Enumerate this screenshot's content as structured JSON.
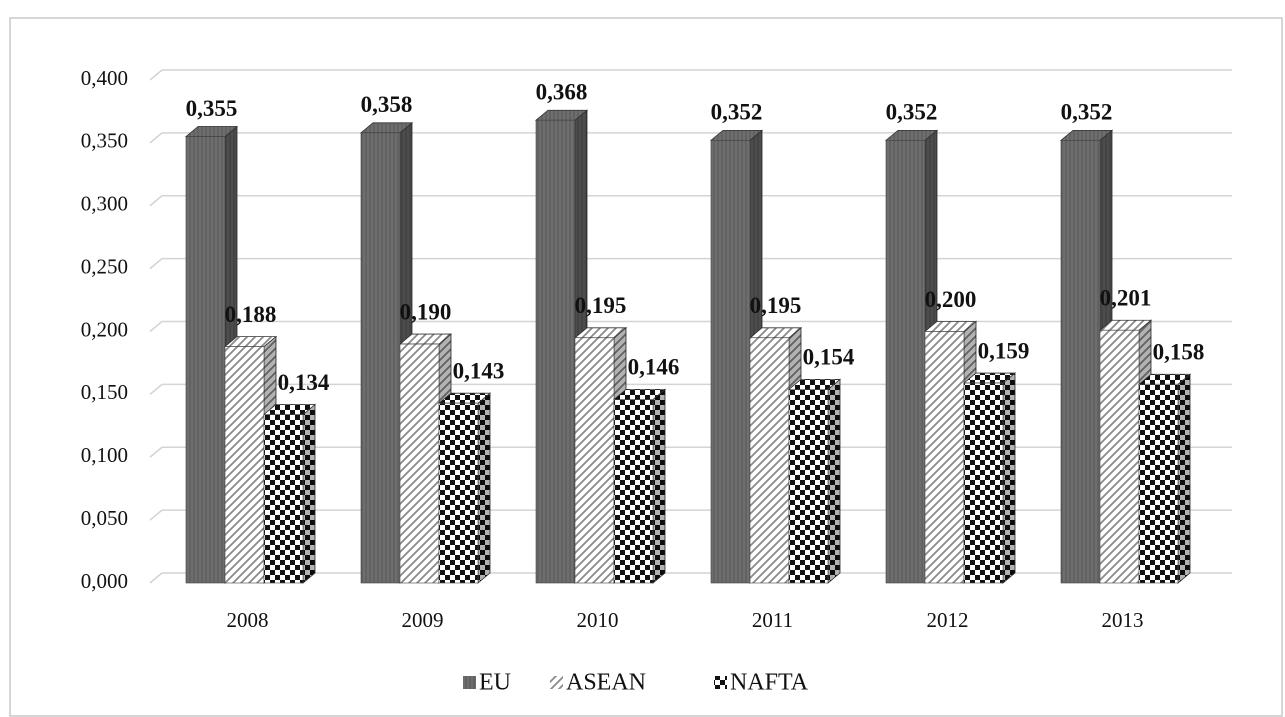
{
  "chart_data": {
    "type": "bar3d",
    "categories": [
      "2008",
      "2009",
      "2010",
      "2011",
      "2012",
      "2013"
    ],
    "series": [
      {
        "name": "EU",
        "color": "#6e6e6e",
        "values": [
          0.355,
          0.358,
          0.368,
          0.352,
          0.352,
          0.352
        ],
        "value_labels": [
          "0,355",
          "0,358",
          "0,368",
          "0,352",
          "0,352",
          "0,352"
        ]
      },
      {
        "name": "ASEAN",
        "color": "#8a8a8a",
        "values": [
          0.188,
          0.19,
          0.195,
          0.195,
          0.2,
          0.201
        ],
        "value_labels": [
          "0,188",
          "0,190",
          "0,195",
          "0,195",
          "0,200",
          "0,201"
        ]
      },
      {
        "name": "NAFTA",
        "color": "#111111",
        "values": [
          0.134,
          0.143,
          0.146,
          0.154,
          0.159,
          0.158
        ],
        "value_labels": [
          "0,134",
          "0,143",
          "0,146",
          "0,154",
          "0,159",
          "0,158"
        ]
      }
    ],
    "ylim": [
      0,
      0.4
    ],
    "yticks": [
      {
        "value": 0,
        "label": "0,000"
      },
      {
        "value": 0.05,
        "label": "0,050"
      },
      {
        "value": 0.1,
        "label": "0,100"
      },
      {
        "value": 0.15,
        "label": "0,150"
      },
      {
        "value": 0.2,
        "label": "0,200"
      },
      {
        "value": 0.25,
        "label": "0,250"
      },
      {
        "value": 0.3,
        "label": "0,300"
      },
      {
        "value": 0.35,
        "label": "0,350"
      },
      {
        "value": 0.4,
        "label": "0,400"
      }
    ],
    "grid": true,
    "legend": "bottom"
  }
}
